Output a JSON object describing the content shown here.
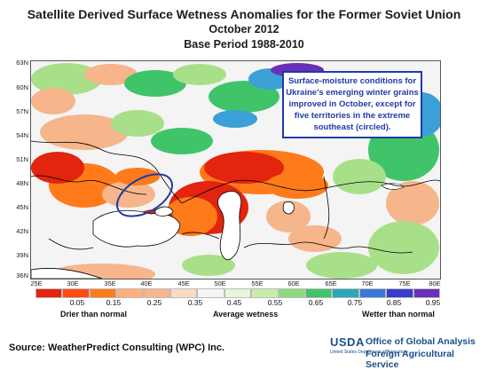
{
  "title": {
    "line1": "Satellite Derived Surface Wetness Anomalies for the Former Soviet Union",
    "line2": "October 2012",
    "line3": "Base Period 1988-2010"
  },
  "map": {
    "lat_labels": [
      "63N",
      "60N",
      "57N",
      "54N",
      "51N",
      "48N",
      "45N",
      "42N",
      "39N",
      "36N"
    ],
    "lon_labels": [
      "25E",
      "30E",
      "35E",
      "40E",
      "45E",
      "50E",
      "55E",
      "60E",
      "65E",
      "70E",
      "75E",
      "80E"
    ],
    "callout": "Surface-moisture conditions for Ukraine's emerging winter grains improved in October, except for five territories in the extreme southeast (circled).",
    "colors": {
      "sea": "#ffffff",
      "very_dry": "#e3240e",
      "dry": "#ff7a1a",
      "slightly_dry": "#f7b58c",
      "average": "#f4f4f4",
      "slightly_wet": "#a8e08a",
      "wet": "#3fc46a",
      "very_wet": "#3aa0d6",
      "extreme_wet": "#6a2fb8",
      "highlight_ellipse": "#1f3aa8"
    }
  },
  "legend": {
    "colors": [
      "#e3240e",
      "#ff4a14",
      "#ff7a1a",
      "#ffb07a",
      "#f7b58c",
      "#fad9c4",
      "#f4f4f4",
      "#e8f5d8",
      "#c8ecaa",
      "#8fd97e",
      "#3fc46a",
      "#2aa7b8",
      "#3a78d6",
      "#3a3ad0",
      "#6a2fb8"
    ],
    "ticks": [
      "0.05",
      "0.15",
      "0.25",
      "0.35",
      "0.45",
      "0.55",
      "0.65",
      "0.75",
      "0.85",
      "0.95"
    ],
    "drier": "Drier than normal",
    "average": "Average wetness",
    "wetter": "Wetter than normal"
  },
  "footer": {
    "source": "Source: WeatherPredict Consulting (WPC) Inc.",
    "usda": "USDA",
    "usda_sub": "United States Department of Agriculture",
    "org_line1": "Office of Global Analysis",
    "org_line2": "Foreign Agricultural Service"
  }
}
